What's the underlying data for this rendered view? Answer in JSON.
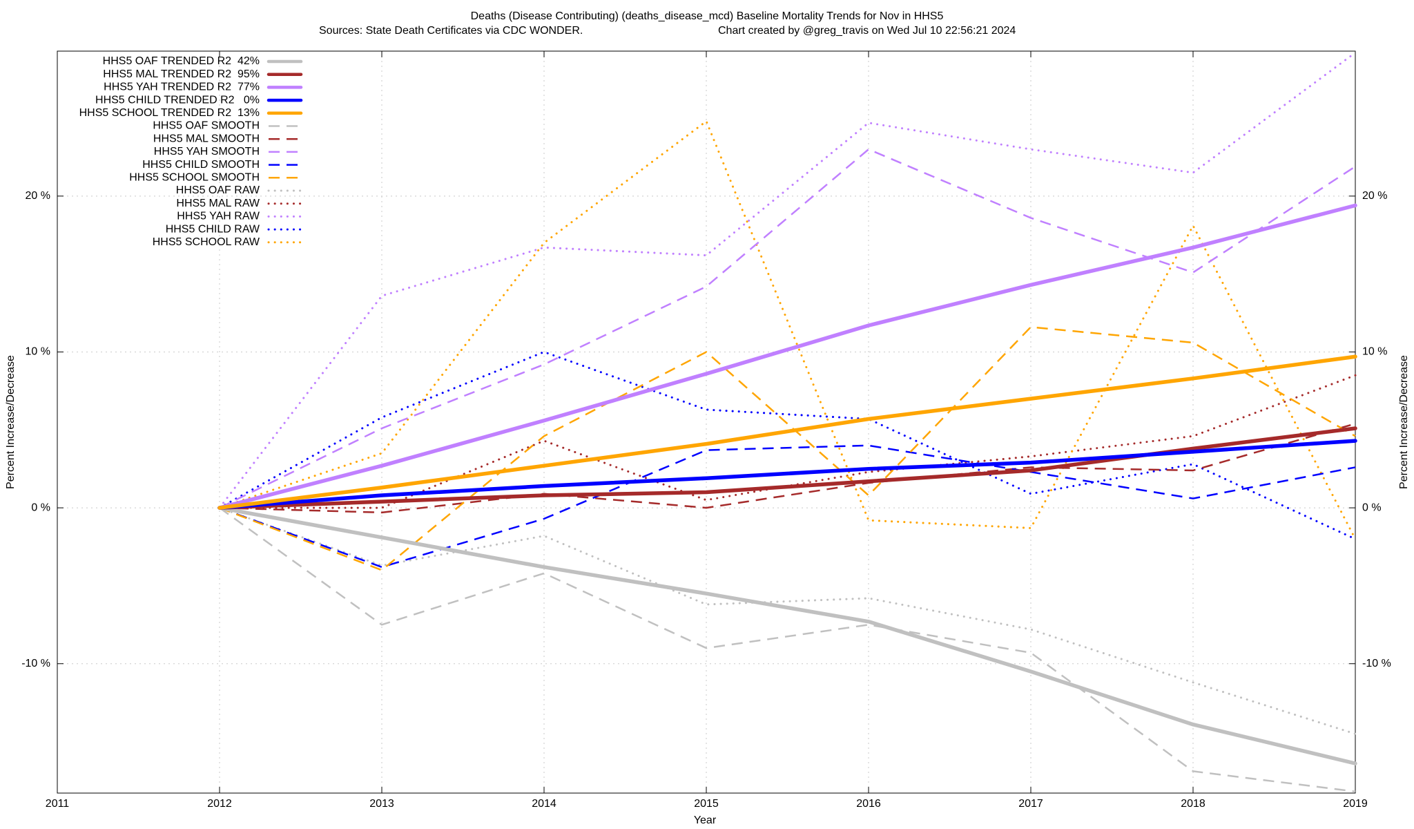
{
  "chart_data": {
    "type": "line",
    "title": "Deaths (Disease Contributing) (deaths_disease_mcd)  Baseline Mortality Trends for Nov in HHS5",
    "subtitle": "Sources: State Death Certificates via CDC WONDER.",
    "credit": "Chart created by @greg_travis on Wed Jul 10 22:56:21 2024",
    "xlabel": "Year",
    "ylabel": "Percent Increase/Decrease",
    "y2label": "Percent Increase/Decrease",
    "x": [
      2012,
      2013,
      2014,
      2015,
      2016,
      2017,
      2018,
      2019
    ],
    "xlim": [
      2011,
      2019
    ],
    "xticks": [
      2011,
      2012,
      2013,
      2014,
      2015,
      2016,
      2017,
      2018,
      2019
    ],
    "ylim": [
      -18.3,
      29.3
    ],
    "yticks": [
      {
        "value": -10,
        "label": "-10 %"
      },
      {
        "value": 0,
        "label": "0 %"
      },
      {
        "value": 10,
        "label": "10 %"
      },
      {
        "value": 20,
        "label": "20 %"
      }
    ],
    "y2lim": [
      -18.3,
      29.3
    ],
    "y2ticks": [
      {
        "value": -10,
        "label": "-10 %"
      },
      {
        "value": 0,
        "label": "0 %"
      },
      {
        "value": 10,
        "label": "10 %"
      },
      {
        "value": 20,
        "label": "20 %"
      }
    ],
    "grid": true,
    "legend": "top-left",
    "series": [
      {
        "name": "HHS5 OAF TRENDED R2  42%",
        "color": "#c0c0c0",
        "style": "solid",
        "values": [
          0,
          -1.9,
          -3.8,
          -5.5,
          -7.3,
          -10.5,
          -13.9,
          -16.4
        ]
      },
      {
        "name": "HHS5 MAL TRENDED R2  95%",
        "color": "#a52a2a",
        "style": "solid",
        "values": [
          0,
          0.4,
          0.8,
          1.0,
          1.7,
          2.4,
          3.8,
          5.1
        ]
      },
      {
        "name": "HHS5 YAH TRENDED R2  77%",
        "color": "#c080ff",
        "style": "solid",
        "values": [
          0,
          2.7,
          5.6,
          8.6,
          11.7,
          14.3,
          16.7,
          19.4
        ]
      },
      {
        "name": "HHS5 CHILD TRENDED R2   0%",
        "color": "#0000ff",
        "style": "solid",
        "values": [
          0,
          0.8,
          1.4,
          1.9,
          2.5,
          2.9,
          3.6,
          4.3
        ]
      },
      {
        "name": "HHS5 SCHOOL TRENDED R2  13%",
        "color": "#ffa500",
        "style": "solid",
        "values": [
          0,
          1.3,
          2.7,
          4.1,
          5.7,
          7.0,
          8.3,
          9.7
        ]
      },
      {
        "name": "HHS5 OAF SMOOTH",
        "color": "#c0c0c0",
        "style": "dashed",
        "values": [
          0,
          -7.5,
          -4.2,
          -9.0,
          -7.5,
          -9.3,
          -16.9,
          -18.2
        ]
      },
      {
        "name": "HHS5 MAL SMOOTH",
        "color": "#a52a2a",
        "style": "dashed",
        "values": [
          0,
          -0.3,
          0.9,
          0.0,
          1.6,
          2.6,
          2.4,
          5.4
        ]
      },
      {
        "name": "HHS5 YAH SMOOTH",
        "color": "#c080ff",
        "style": "dashed",
        "values": [
          0,
          5.1,
          9.2,
          14.2,
          23.0,
          18.6,
          15.1,
          21.9
        ]
      },
      {
        "name": "HHS5 CHILD SMOOTH",
        "color": "#0000ff",
        "style": "dashed",
        "values": [
          0,
          -3.8,
          -0.7,
          3.7,
          4.0,
          2.3,
          0.6,
          2.6
        ]
      },
      {
        "name": "HHS5 SCHOOL SMOOTH",
        "color": "#ffa500",
        "style": "dashed",
        "values": [
          0,
          -4.0,
          4.6,
          10.0,
          0.8,
          11.6,
          10.6,
          4.6
        ]
      },
      {
        "name": "HHS5 OAF RAW",
        "color": "#c0c0c0",
        "style": "dotted",
        "values": [
          0,
          -3.7,
          -1.8,
          -6.2,
          -5.8,
          -7.8,
          -11.2,
          -14.5
        ]
      },
      {
        "name": "HHS5 MAL RAW",
        "color": "#a52a2a",
        "style": "dotted",
        "values": [
          0,
          0.0,
          4.3,
          0.5,
          2.3,
          3.3,
          4.6,
          8.5
        ]
      },
      {
        "name": "HHS5 YAH RAW",
        "color": "#c080ff",
        "style": "dotted",
        "values": [
          0,
          13.6,
          16.7,
          16.2,
          24.7,
          23.0,
          21.5,
          29.2
        ]
      },
      {
        "name": "HHS5 CHILD RAW",
        "color": "#0000ff",
        "style": "dotted",
        "values": [
          0,
          5.8,
          10.0,
          6.3,
          5.7,
          0.9,
          2.8,
          -2.0
        ]
      },
      {
        "name": "HHS5 SCHOOL RAW",
        "color": "#ffa500",
        "style": "dotted",
        "values": [
          0,
          3.5,
          17.0,
          24.8,
          -0.8,
          -1.3,
          18.1,
          -2.0
        ]
      }
    ]
  }
}
